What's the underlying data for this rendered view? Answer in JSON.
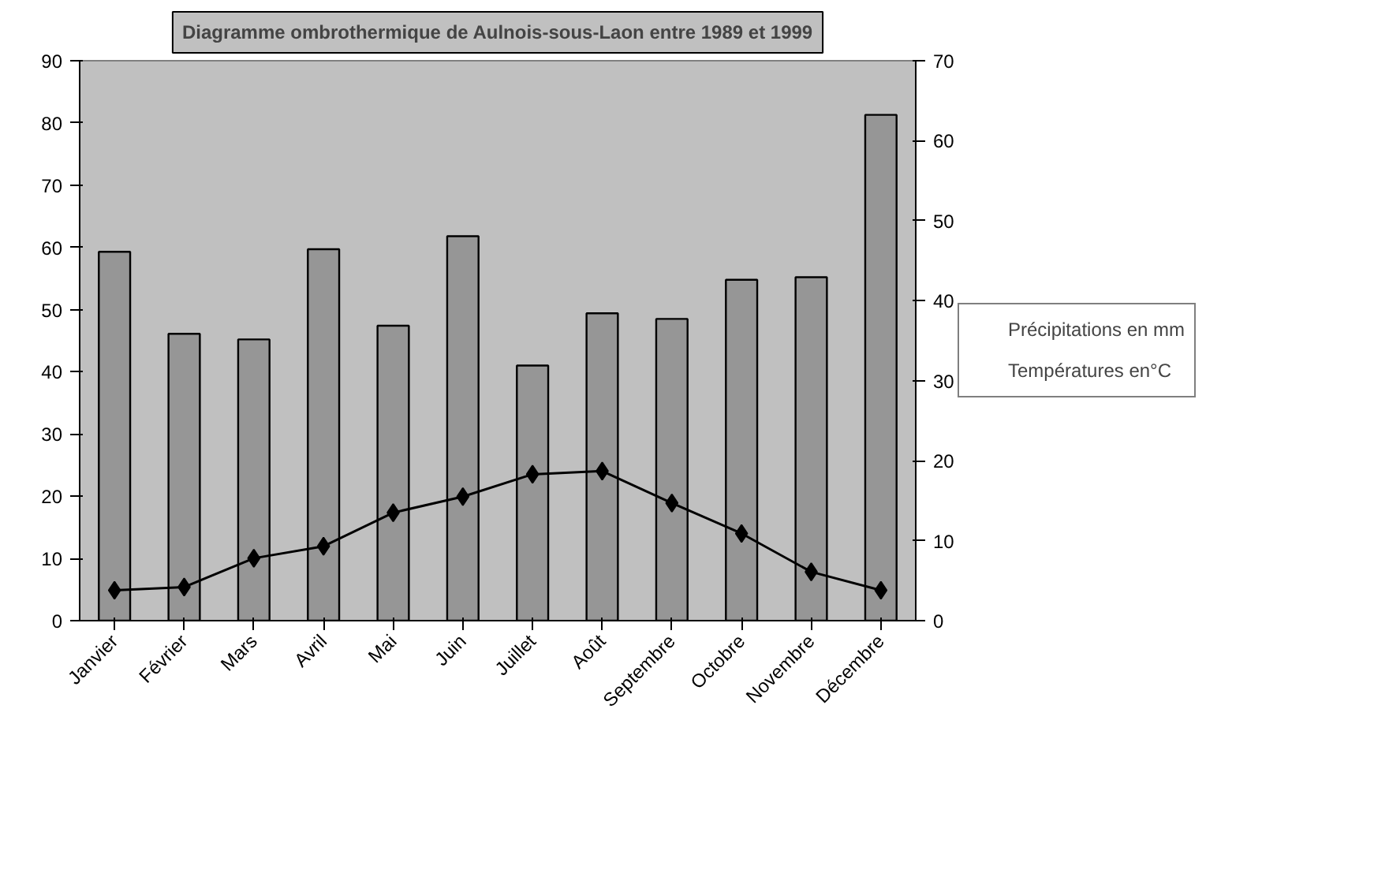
{
  "chart_data": {
    "type": "bar",
    "title": "Diagramme ombrothermique de Aulnois-sous-Laon entre 1989 et 1999",
    "categories": [
      "Janvier",
      "Février",
      "Mars",
      "Avril",
      "Mai",
      "Juin",
      "Juillet",
      "Août",
      "Septembre",
      "Octobre",
      "Novembre",
      "Décembre"
    ],
    "series": [
      {
        "name": "Précipitations en mm",
        "color": "#969696",
        "values": [
          59.3,
          46.1,
          45.2,
          59.7,
          47.4,
          61.8,
          41.0,
          49.4,
          48.5,
          54.8,
          55.2,
          81.3
        ]
      },
      {
        "name": "Températures en°C",
        "type": "line",
        "axis": "y2",
        "color": "#000000",
        "marker": "diamond",
        "values": [
          3.8,
          4.2,
          7.8,
          9.3,
          13.5,
          15.5,
          18.3,
          18.7,
          14.7,
          10.9,
          6.1,
          3.8
        ]
      }
    ],
    "ylim": [
      0,
      90
    ],
    "yticks": [
      0,
      10,
      20,
      30,
      40,
      50,
      60,
      70,
      80,
      90
    ],
    "y2lim": [
      0,
      70
    ],
    "y2ticks": [
      0,
      10,
      20,
      30,
      40,
      50,
      60,
      70
    ],
    "grid": false,
    "legend": "right"
  }
}
